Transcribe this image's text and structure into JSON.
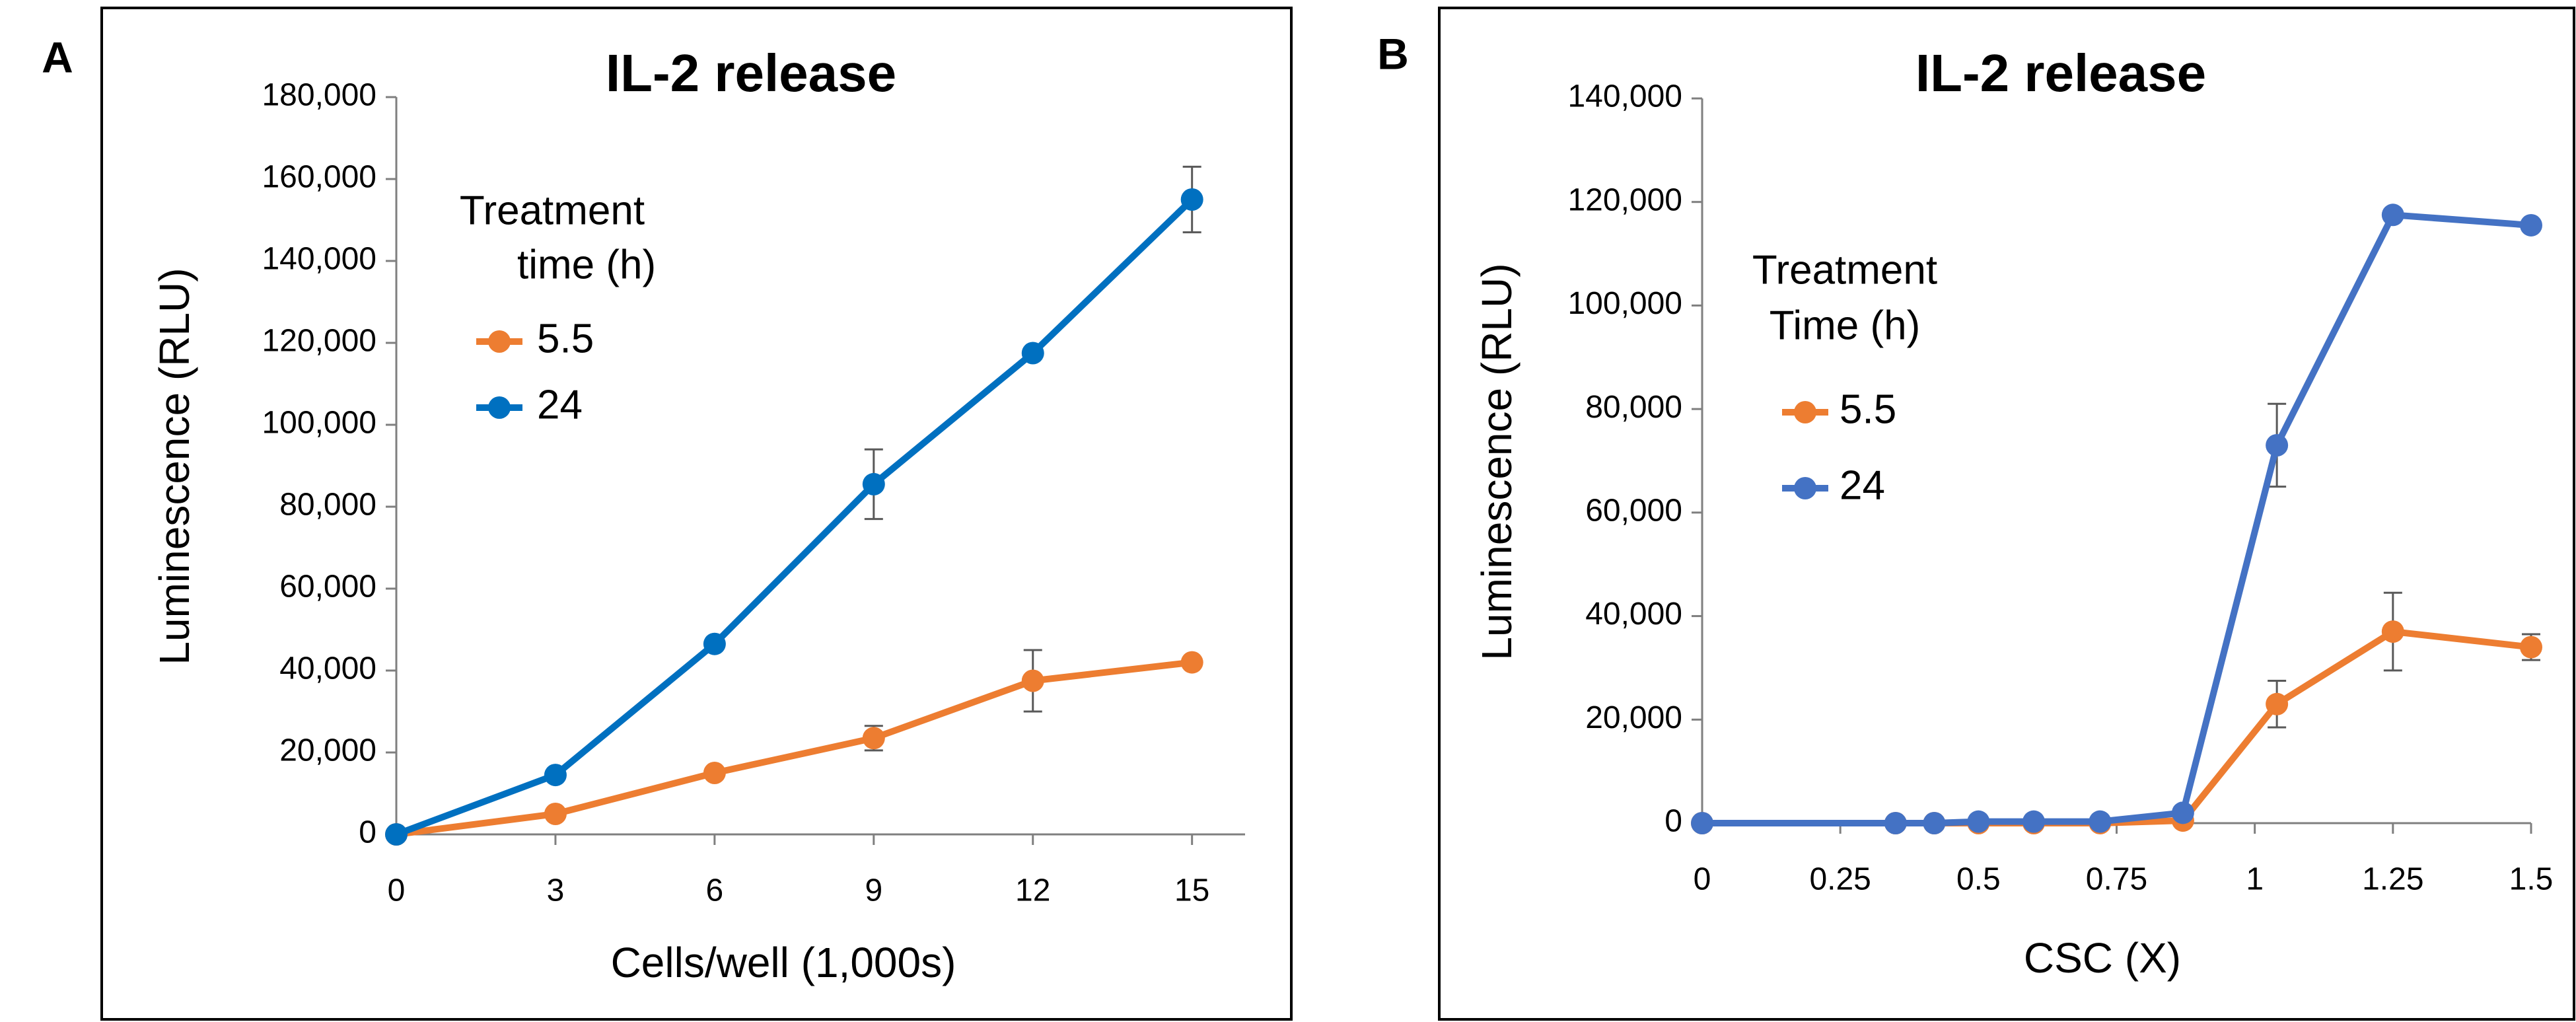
{
  "chart_data": [
    {
      "type": "line",
      "panel_label": "A",
      "title": "IL-2 release",
      "x_label": "Cells/well (1,000s)",
      "y_label": "Luminescence (RLU)",
      "legend_title": [
        "Treatment",
        "time (h)"
      ],
      "x": [
        0,
        3,
        6,
        9,
        12,
        15
      ],
      "series": [
        {
          "name": "5.5",
          "color": "#ed7d31",
          "values": [
            0,
            5000,
            15000,
            23500,
            37500,
            42000
          ],
          "errors": [
            0,
            0,
            0,
            3000,
            7500,
            0
          ]
        },
        {
          "name": "24",
          "color": "#0070c0",
          "values": [
            0,
            14500,
            46500,
            85500,
            117500,
            155000
          ],
          "errors": [
            0,
            0,
            0,
            8500,
            0,
            8000
          ]
        }
      ],
      "xlim": [
        0,
        16
      ],
      "xticks": [
        0,
        3,
        6,
        9,
        12,
        15
      ],
      "ylim": [
        0,
        180000
      ],
      "yticks": [
        0,
        {
          "value": 20000,
          "label": "20,000"
        },
        {
          "value": 40000,
          "label": "40,000"
        },
        {
          "value": 60000,
          "label": "60,000"
        },
        {
          "value": 80000,
          "label": "80,000"
        },
        {
          "value": 100000,
          "label": "100,000"
        },
        {
          "value": 120000,
          "label": "120,000"
        },
        {
          "value": 140000,
          "label": "140,000"
        },
        {
          "value": 160000,
          "label": "160,000"
        },
        {
          "value": 180000,
          "label": "180,000"
        }
      ]
    },
    {
      "type": "line",
      "panel_label": "B",
      "title": "IL-2 release",
      "x_label": "CSC (X)",
      "y_label": "Luminescence (RLU)",
      "legend_title": [
        "Treatment",
        "Time (h)"
      ],
      "x": [
        0,
        0.35,
        0.42,
        0.5,
        0.6,
        0.72,
        0.87,
        1.04,
        1.25,
        1.5
      ],
      "series": [
        {
          "name": "5.5",
          "color": "#ed7d31",
          "values": [
            0,
            0,
            0,
            0,
            0,
            0,
            500,
            23000,
            37000,
            34000
          ],
          "errors": [
            0,
            0,
            0,
            0,
            0,
            0,
            0,
            4500,
            7500,
            2500
          ]
        },
        {
          "name": "24",
          "color": "#4472c4",
          "values": [
            0,
            0,
            0,
            300,
            300,
            300,
            2000,
            73000,
            117500,
            115500
          ],
          "errors": [
            0,
            0,
            0,
            0,
            0,
            0,
            0,
            8000,
            0,
            0
          ]
        }
      ],
      "xlim": [
        0,
        1.5
      ],
      "xticks": [
        0,
        0.25,
        0.5,
        0.75,
        1,
        1.25,
        1.5
      ],
      "ylim": [
        0,
        140000
      ],
      "yticks": [
        0,
        {
          "value": 20000,
          "label": "20,000"
        },
        {
          "value": 40000,
          "label": "40,000"
        },
        {
          "value": 60000,
          "label": "60,000"
        },
        {
          "value": 80000,
          "label": "80,000"
        },
        {
          "value": 100000,
          "label": "100,000"
        },
        {
          "value": 120000,
          "label": "120,000"
        },
        {
          "value": 140000,
          "label": "140,000"
        }
      ]
    }
  ]
}
